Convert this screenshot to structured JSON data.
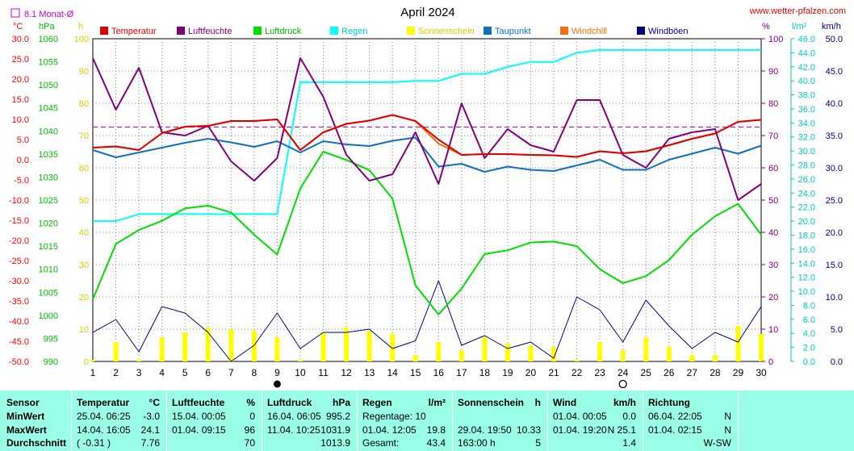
{
  "header": {
    "title": "April 2024",
    "website": "www.wetter-pfalzen.com",
    "avg_label": "8.1 Monat-Ø"
  },
  "chart_data": {
    "type": "line",
    "title": "April 2024",
    "x": [
      1,
      2,
      3,
      4,
      5,
      6,
      7,
      8,
      9,
      10,
      11,
      12,
      13,
      14,
      15,
      16,
      17,
      18,
      19,
      20,
      21,
      22,
      23,
      24,
      25,
      26,
      27,
      28,
      29,
      30
    ],
    "axes": {
      "temperature": {
        "unit": "°C",
        "range": [
          -50,
          30
        ],
        "ticks": [
          "30.0",
          "25.0",
          "20.0",
          "15.0",
          "10.0",
          "5.0",
          "0.0",
          "-5.0",
          "-10.0",
          "-15.0",
          "-20.0",
          "-25.0",
          "-30.0",
          "-35.0",
          "-40.0",
          "-45.0",
          "-50.0"
        ]
      },
      "pressure": {
        "unit": "hPa",
        "range": [
          990,
          1060
        ],
        "ticks": [
          "1060",
          "1055",
          "1050",
          "1045",
          "1040",
          "1035",
          "1030",
          "1025",
          "1020",
          "1015",
          "1010",
          "1005",
          "1000",
          "995",
          "990"
        ]
      },
      "sunshine": {
        "unit": "h",
        "range": [
          0,
          100
        ],
        "ticks": [
          "100",
          "90",
          "80",
          "70",
          "60",
          "50",
          "40",
          "30",
          "20",
          "10",
          "0"
        ]
      },
      "humidity": {
        "unit": "%",
        "range": [
          0,
          100
        ],
        "ticks": [
          "100",
          "90",
          "80",
          "70",
          "60",
          "50",
          "40",
          "30",
          "20",
          "10",
          "0"
        ]
      },
      "rain": {
        "unit": "l/m²",
        "range": [
          0,
          46
        ],
        "ticks": [
          "46.0",
          "44.0",
          "42.0",
          "40.0",
          "38.0",
          "36.0",
          "34.0",
          "32.0",
          "30.0",
          "28.0",
          "26.0",
          "24.0",
          "22.0",
          "20.0",
          "18.0",
          "16.0",
          "14.0",
          "12.0",
          "10.0",
          "8.0",
          "6.0",
          "4.0",
          "2.0",
          "0.0"
        ]
      },
      "wind": {
        "unit": "km/h",
        "range": [
          0,
          50
        ],
        "ticks": [
          "50.0",
          "45.0",
          "40.0",
          "35.0",
          "30.0",
          "25.0",
          "20.0",
          "15.0",
          "10.0",
          "5.0",
          "0.0"
        ]
      }
    },
    "monthly_average_temperature": 8.1,
    "series": [
      {
        "name": "Temperatur",
        "axis": "temperature",
        "color": "#e00000",
        "values": [
          3.0,
          3.3,
          2.4,
          6.6,
          8.2,
          8.4,
          9.6,
          9.6,
          10.0,
          2.4,
          6.8,
          8.9,
          9.7,
          11.1,
          9.6,
          5.0,
          1.2,
          1.4,
          1.4,
          1.2,
          1.1,
          0.7,
          2.1,
          1.6,
          2.1,
          3.6,
          5.2,
          6.5,
          9.4,
          9.9
        ]
      },
      {
        "name": "Luftfeuchte",
        "axis": "humidity",
        "color": "#800080",
        "values": [
          94,
          78,
          91,
          71,
          70,
          73,
          62,
          56,
          63,
          94,
          82,
          64,
          56,
          58,
          71,
          55,
          80,
          63,
          72,
          67,
          65,
          81,
          81,
          64,
          60,
          69,
          71,
          72,
          50,
          55
        ]
      },
      {
        "name": "Luftdruck",
        "axis": "pressure",
        "color": "#00e000",
        "values": [
          1003.5,
          1015.5,
          1018.5,
          1020.5,
          1023.2,
          1023.8,
          1022.3,
          1017.5,
          1013.2,
          1027.5,
          1035.5,
          1033.7,
          1031.5,
          1025.3,
          1006.5,
          1000.2,
          1005.8,
          1013.3,
          1014.1,
          1015.8,
          1016,
          1015,
          1010,
          1007,
          1008.5,
          1012,
          1017.5,
          1021.5,
          1024.2,
          1017.5
        ]
      },
      {
        "name": "Regen",
        "axis": "rain",
        "color": "#00ffff",
        "values": [
          20.0,
          20.0,
          21.0,
          21.0,
          21.0,
          21.0,
          21.0,
          21.0,
          21.0,
          39.8,
          39.8,
          39.8,
          39.8,
          39.8,
          40.0,
          40.0,
          41.0,
          41.0,
          42.0,
          42.7,
          42.7,
          44.0,
          44.4,
          44.4,
          44.4,
          44.4,
          44.4,
          44.4,
          44.4,
          44.4
        ]
      },
      {
        "name": "Sonnenschein",
        "axis": "sunshine",
        "color": "#ffff00",
        "values": [
          0.5,
          6.0,
          0.5,
          7.5,
          9.0,
          10.5,
          10.0,
          9.5,
          7.5,
          0.5,
          9.0,
          10.5,
          9.5,
          8.5,
          2.0,
          6.0,
          3.5,
          7.5,
          5.5,
          5.0,
          4.5,
          0.5,
          6.0,
          3.5,
          7.5,
          4.5,
          2.0,
          2.0,
          11.0,
          8.5
        ]
      },
      {
        "name": "Taupunkt",
        "axis": "temperature",
        "color": "#1070c0",
        "values": [
          2.4,
          0.6,
          1.8,
          3.0,
          4.2,
          5.2,
          4.3,
          3.2,
          4.6,
          1.8,
          4.6,
          3.8,
          3.4,
          4.7,
          5.5,
          -1.7,
          -1.0,
          -3.0,
          -1.7,
          -2.5,
          -2.8,
          -1.4,
          0.0,
          -2.5,
          -2.5,
          0.0,
          1.5,
          3.0,
          1.5,
          3.5
        ]
      },
      {
        "name": "Windchill",
        "axis": "temperature",
        "color": "#f07010",
        "values": [
          3.0,
          3.3,
          2.4,
          6.6,
          8.2,
          8.4,
          9.6,
          9.6,
          10.0,
          2.4,
          6.8,
          8.9,
          9.7,
          11.1,
          9.6,
          4.0,
          1.2,
          1.4,
          1.4,
          1.2,
          1.1,
          0.7,
          2.1,
          1.6,
          2.1,
          3.6,
          5.2,
          6.5,
          9.4,
          9.9
        ]
      },
      {
        "name": "Windböen",
        "axis": "wind",
        "color": "#000080",
        "values": [
          4.5,
          6.5,
          1.5,
          8.5,
          7.5,
          4.5,
          0.0,
          2.5,
          7.5,
          2.0,
          4.5,
          4.5,
          5.0,
          2.0,
          3.2,
          12.5,
          2.5,
          4.0,
          2.0,
          3.0,
          0.5,
          10.0,
          8.0,
          3.0,
          9.5,
          5.5,
          2.0,
          4.5,
          3.0,
          8.5
        ]
      }
    ],
    "markers": [
      {
        "day": 9,
        "symbol": "new-moon"
      },
      {
        "day": 24,
        "symbol": "full-moon"
      }
    ],
    "legend": "top",
    "grid": true
  },
  "stats": {
    "sensor": {
      "header": "Sensor",
      "rows": [
        "MinWert",
        "MaxWert",
        "Durchschnitt"
      ]
    },
    "temperature": {
      "header": "Temperatur",
      "unit": "°C",
      "min": {
        "when": "25.04.  06:25",
        "value": "-3.0"
      },
      "max": {
        "when": "14.04.  16:05",
        "value": "24.1"
      },
      "avg": {
        "when": "( -0.31 )",
        "value": "7.76"
      }
    },
    "humidity": {
      "header": "Luftfeuchte",
      "unit": "%",
      "min": {
        "when": "15.04.  00:05",
        "value": "0"
      },
      "max": {
        "when": "01.04.  09:15",
        "value": "96"
      },
      "avg": {
        "when": "",
        "value": "70"
      }
    },
    "pressure": {
      "header": "Luftdruck",
      "unit": "hPa",
      "min": {
        "when": "16.04.  06:05",
        "value": "995.2"
      },
      "max": {
        "when": "11.04.  10:25",
        "value": "1031.9"
      },
      "avg": {
        "when": "",
        "value": "1013.9"
      }
    },
    "rain": {
      "header": "Regen",
      "unit": "l/m²",
      "min": {
        "when": "Regentage: 10",
        "value": ""
      },
      "max": {
        "when": "01.04.  12:05",
        "value": "19.8"
      },
      "avg": {
        "when": "Gesamt:",
        "value": "43.4"
      }
    },
    "sunshine": {
      "header": "Sonnenschein",
      "unit": "h",
      "min": {
        "when": "",
        "value": ""
      },
      "max": {
        "when": "29.04.  19:50",
        "value": "10.33"
      },
      "avg": {
        "when": "163:00 h",
        "value": "5"
      }
    },
    "wind": {
      "header": "Wind",
      "unit": "km/h",
      "min": {
        "when": "01.04.  00:05",
        "value": "0.0"
      },
      "max": {
        "when": "01.04.  19:20",
        "value": "N  25.1"
      },
      "avg": {
        "when": "",
        "value": "1.4"
      }
    },
    "direction": {
      "header": "Richtung",
      "min": {
        "when": "06.04.  22:05",
        "value": "N"
      },
      "max": {
        "when": "01.04.  02:15",
        "value": "N"
      },
      "avg": {
        "when": "",
        "value": "W-SW"
      }
    }
  }
}
